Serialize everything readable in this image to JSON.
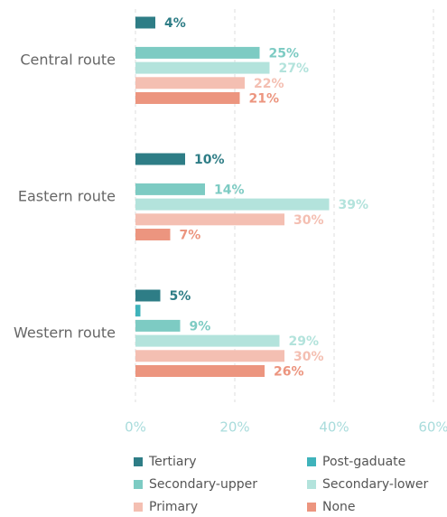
{
  "chart_data": {
    "type": "hbar",
    "categories": [
      "Central route",
      "Eastern route",
      "Western route"
    ],
    "series": [
      {
        "name": "Tertiary",
        "color": "#2e7d86",
        "values": [
          4,
          10,
          5
        ],
        "value_labels": [
          "4%",
          "10%",
          "5%"
        ]
      },
      {
        "name": "Post-gaduate",
        "color": "#3fb3bb",
        "values": [
          null,
          null,
          1
        ],
        "value_labels": [
          null,
          null,
          null
        ]
      },
      {
        "name": "Secondary-upper",
        "color": "#7dcbc3",
        "values": [
          25,
          14,
          9
        ],
        "value_labels": [
          "25%",
          "14%",
          "9%"
        ]
      },
      {
        "name": "Secondary-lower",
        "color": "#b3e3dc",
        "values": [
          27,
          39,
          29
        ],
        "value_labels": [
          "27%",
          "39%",
          "29%"
        ]
      },
      {
        "name": "Primary",
        "color": "#f4bfb2",
        "values": [
          22,
          30,
          30
        ],
        "value_labels": [
          "22%",
          "30%",
          "30%"
        ]
      },
      {
        "name": "None",
        "color": "#ec957f",
        "values": [
          21,
          7,
          26
        ],
        "value_labels": [
          "21%",
          "7%",
          "26%"
        ]
      }
    ],
    "xlim": [
      0,
      60
    ],
    "xticks": [
      {
        "value": 0,
        "label": "0%"
      },
      {
        "value": 20,
        "label": "20%"
      },
      {
        "value": 40,
        "label": "40%"
      },
      {
        "value": 60,
        "label": "60%"
      }
    ],
    "grid": true,
    "legend": "bottom"
  }
}
